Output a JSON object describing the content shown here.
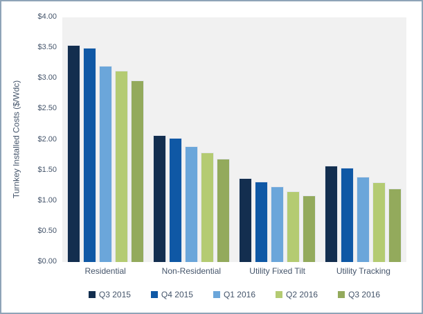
{
  "window": {
    "background": "#ffffff",
    "border_color": "#8fa4b8"
  },
  "chart_data": {
    "type": "bar",
    "title": "",
    "xlabel": "",
    "ylabel": "Turnkey Installed Costs ($/Wdc)",
    "ylim": [
      0,
      4
    ],
    "ytick_step": 0.5,
    "yticks": [
      "$4.00",
      "$3.50",
      "$3.00",
      "$2.50",
      "$2.00",
      "$1.50",
      "$1.00",
      "$0.50",
      "$0.00"
    ],
    "grid": false,
    "plot_background": "#f1f1f1",
    "text_color": "#44546a",
    "legend_position": "bottom",
    "categories": [
      "Residential",
      "Non-Residential",
      "Utility Fixed Tilt",
      "Utility Tracking"
    ],
    "series": [
      {
        "name": "Q3 2015",
        "color": "#132e4f",
        "values": [
          3.55,
          2.07,
          1.37,
          1.58
        ]
      },
      {
        "name": "Q4 2015",
        "color": "#0f58a5",
        "values": [
          3.5,
          2.03,
          1.32,
          1.54
        ]
      },
      {
        "name": "Q1 2016",
        "color": "#6ba6da",
        "values": [
          3.21,
          1.89,
          1.24,
          1.39
        ]
      },
      {
        "name": "Q2 2016",
        "color": "#b4cb72",
        "values": [
          3.13,
          1.79,
          1.16,
          1.3
        ]
      },
      {
        "name": "Q3 2016",
        "color": "#93aa5c",
        "values": [
          2.97,
          1.69,
          1.09,
          1.2
        ]
      }
    ]
  }
}
